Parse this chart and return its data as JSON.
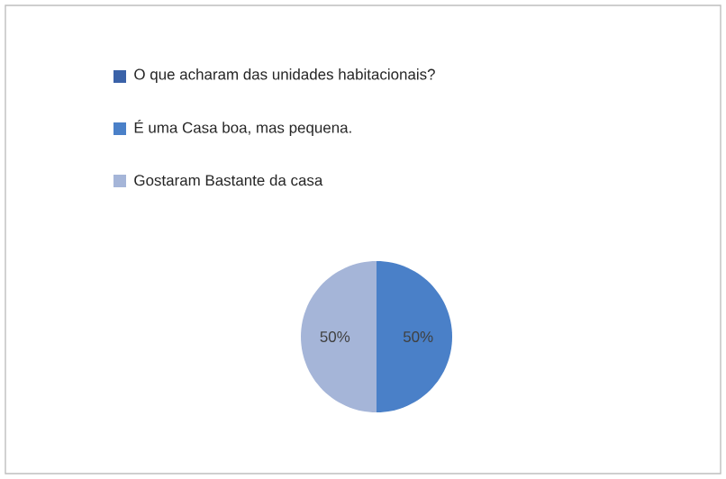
{
  "chart_data": {
    "type": "pie",
    "categories": [
      "O que acharam das unidades habitacionais?",
      "É uma Casa boa, mas pequena.",
      "Gostaram Bastante da casa"
    ],
    "values": [
      0,
      50,
      50
    ],
    "colors": [
      "#3a62a8",
      "#4a80c8",
      "#a5b5d8"
    ],
    "value_labels": [
      null,
      "50%",
      "50%"
    ],
    "legend": "top"
  }
}
